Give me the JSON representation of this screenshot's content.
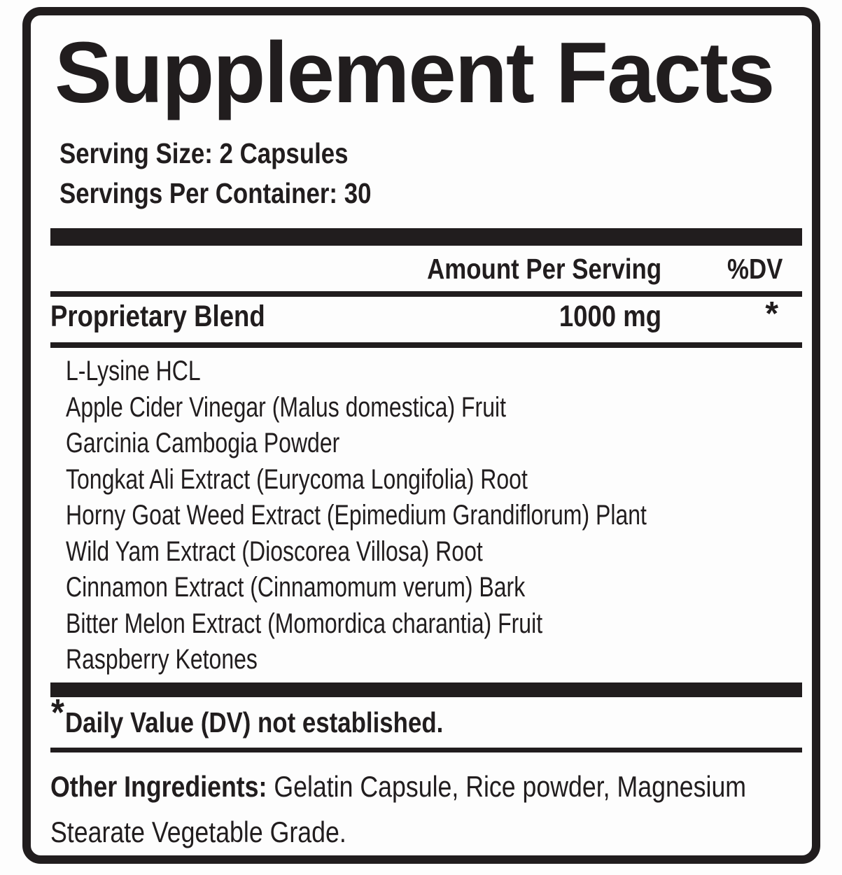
{
  "label": {
    "title": "Supplement Facts",
    "serving": {
      "serving_size": "Serving Size: 2 Capsules",
      "servings_per_container": "Servings Per Container: 30"
    },
    "table": {
      "amount_header": "Amount Per Serving",
      "dv_header": "%DV",
      "blend": {
        "name": "Proprietary Blend",
        "amount": "1000 mg",
        "dv": "*"
      },
      "ingredients": [
        "L-Lysine HCL",
        "Apple Cider Vinegar (Malus domestica) Fruit",
        "Garcinia Cambogia Powder",
        "Tongkat Ali Extract (Eurycoma Longifolia) Root",
        "Horny Goat Weed Extract (Epimedium Grandiflorum) Plant",
        "Wild Yam Extract (Dioscorea Villosa) Root",
        "Cinnamon Extract (Cinnamomum verum) Bark",
        "Bitter Melon Extract (Momordica charantia) Fruit",
        "Raspberry Ketones"
      ]
    },
    "footnote": {
      "asterisk": "*",
      "text": "Daily Value (DV) not established."
    },
    "other_ingredients": {
      "label": "Other Ingredients:",
      "text": " Gelatin Capsule, Rice powder, Magnesium Stearate Vegetable Grade."
    },
    "colors": {
      "ink": "#211d1e",
      "background": "#fdfdfd"
    }
  }
}
